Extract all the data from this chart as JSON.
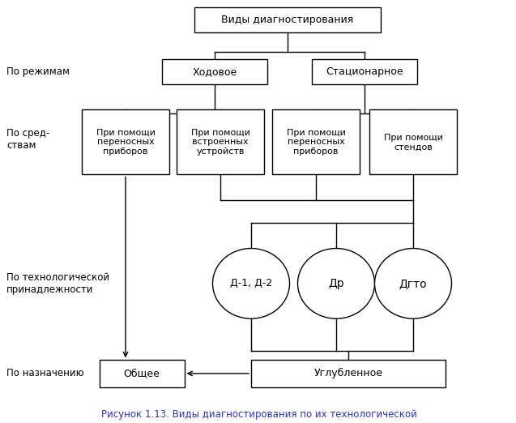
{
  "title": "Виды диагностирования",
  "node_khodovoe": "Ходовое",
  "node_stacionarnoe": "Стационарное",
  "node_pp1": "При помощи\nпереносных\nприборов",
  "node_pp2": "При помощи\nвстроенных\nустройств",
  "node_pp3": "При помощи\nпереносных\nприборов",
  "node_pp4": "При помощи\nстендов",
  "node_d12": "Д-1, Д-2",
  "node_dr": "Др",
  "node_dgto": "Дгто",
  "node_obshchee": "Общее",
  "node_uglublennoe": "Углубленное",
  "label_rezhimam": "По режимам",
  "label_sredstvam": "По сред-\nствам",
  "label_tekhnologicheskoy": "По технологической\nпринадлежности",
  "label_naznacheniyu": "По назначению",
  "caption": "Рисунок 1.13. Виды диагностирования по их технологической\nпринадлежности.",
  "bg_color": "#ffffff",
  "text_color": "#000000",
  "caption_color": "#3333aa",
  "figsize": [
    6.37,
    5.22
  ],
  "dpi": 100
}
